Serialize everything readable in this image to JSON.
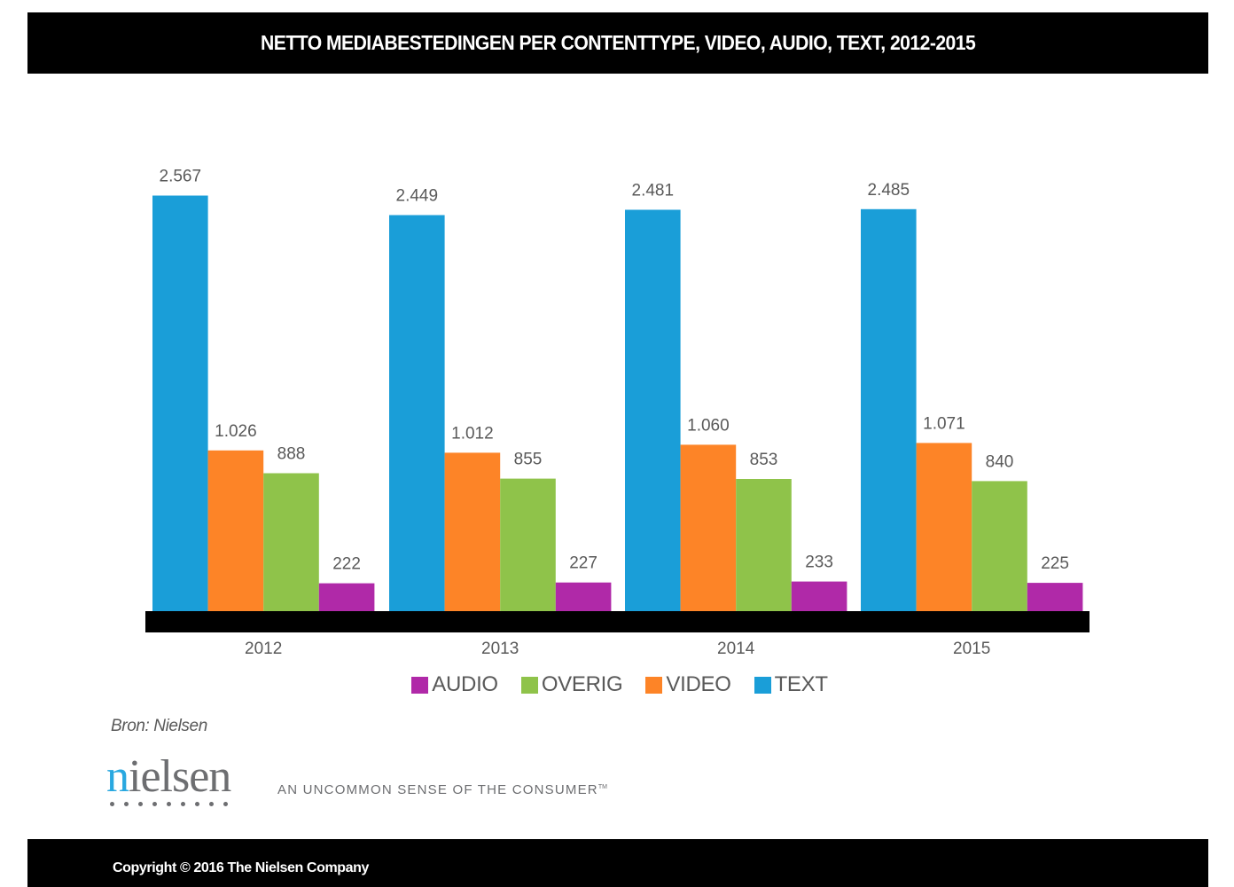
{
  "header": {
    "title": "NETTO MEDIABESTEDINGEN PER CONTENTTYPE, VIDEO, AUDIO, TEXT, 2012-2015"
  },
  "chart_data": {
    "type": "bar",
    "title": "NETTO MEDIABESTEDINGEN PER CONTENTTYPE, VIDEO, AUDIO, TEXT, 2012-2015",
    "xlabel": "",
    "ylabel": "",
    "categories": [
      "2012",
      "2013",
      "2014",
      "2015"
    ],
    "series": [
      {
        "name": "TEXT",
        "color": "#1a9ed8",
        "values": [
          2567,
          2449,
          2481,
          2485
        ],
        "labels": [
          "2.567",
          "2.449",
          "2.481",
          "2.485"
        ]
      },
      {
        "name": "VIDEO",
        "color": "#fd8427",
        "values": [
          1026,
          1012,
          1060,
          1071
        ],
        "labels": [
          "1.026",
          "1.012",
          "1.060",
          "1.071"
        ]
      },
      {
        "name": "OVERIG",
        "color": "#8fc34a",
        "values": [
          888,
          855,
          853,
          840
        ],
        "labels": [
          "888",
          "855",
          "853",
          "840"
        ]
      },
      {
        "name": "AUDIO",
        "color": "#b029a8",
        "values": [
          222,
          227,
          233,
          225
        ],
        "labels": [
          "222",
          "227",
          "233",
          "225"
        ]
      }
    ],
    "legend_order": [
      "AUDIO",
      "OVERIG",
      "VIDEO",
      "TEXT"
    ],
    "legend_placement": "bottom",
    "grid": false,
    "ylim": [
      0,
      2600
    ]
  },
  "legend": [
    {
      "label": "AUDIO",
      "color": "#b029a8"
    },
    {
      "label": "OVERIG",
      "color": "#8fc34a"
    },
    {
      "label": "VIDEO",
      "color": "#fd8427"
    },
    {
      "label": "TEXT",
      "color": "#1a9ed8"
    }
  ],
  "source": "Bron: Nielsen",
  "logo": {
    "wordmark": "nielsen",
    "tagline": "AN UNCOMMON SENSE OF THE CONSUMER",
    "trademark": "TM"
  },
  "footer": {
    "copyright": "Copyright © 2016 The Nielsen Company"
  }
}
